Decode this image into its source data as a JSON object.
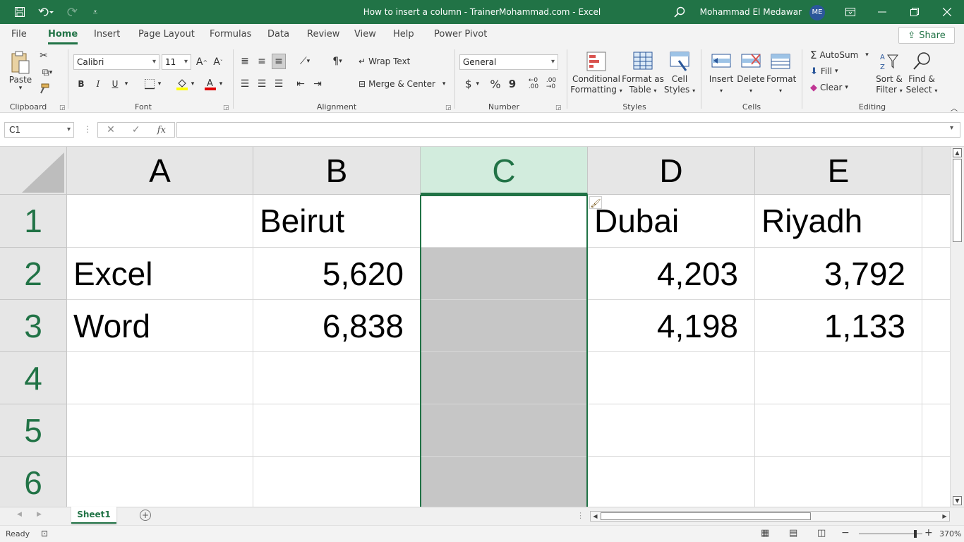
{
  "window": {
    "title": "How to insert a column - TrainerMohammad.com  -  Excel",
    "user_name": "Mohammad El Medawar",
    "user_initials": "ME"
  },
  "ribbon_tabs": [
    "File",
    "Home",
    "Insert",
    "Page Layout",
    "Formulas",
    "Data",
    "Review",
    "View",
    "Help",
    "Power Pivot"
  ],
  "active_tab": "Home",
  "share_label": "Share",
  "clipboard": {
    "paste": "Paste",
    "group": "Clipboard"
  },
  "font": {
    "name": "Calibri",
    "size": "11",
    "group": "Font",
    "bold": "B",
    "italic": "I",
    "underline": "U"
  },
  "alignment": {
    "wrap_text": "Wrap Text",
    "merge_center": "Merge & Center",
    "group": "Alignment"
  },
  "number": {
    "format": "General",
    "currency": "$",
    "percent": "%",
    "comma": "9",
    "group": "Number"
  },
  "styles": {
    "conditional": [
      "Conditional",
      "Formatting"
    ],
    "format_table": [
      "Format as",
      "Table"
    ],
    "cell_styles": [
      "Cell",
      "Styles"
    ],
    "group": "Styles"
  },
  "cells_group": {
    "insert": "Insert",
    "delete": "Delete",
    "format": "Format",
    "group": "Cells"
  },
  "editing": {
    "autosum": "AutoSum",
    "fill": "Fill",
    "clear": "Clear",
    "sort_filter": [
      "Sort &",
      "Filter"
    ],
    "find_select": [
      "Find &",
      "Select"
    ],
    "group": "Editing"
  },
  "formula_bar": {
    "name_box": "C1",
    "fx": "fx",
    "content": ""
  },
  "columns": [
    "A",
    "B",
    "C",
    "D",
    "E"
  ],
  "rows": [
    "1",
    "2",
    "3",
    "4",
    "5",
    "6"
  ],
  "cells": {
    "B1": "Beirut",
    "D1": "Dubai",
    "E1": "Riyadh",
    "A2": "Excel",
    "B2": "5,620",
    "D2": "4,203",
    "E2": "3,792",
    "A3": "Word",
    "B3": "6,838",
    "D3": "4,198",
    "E3": "1,133"
  },
  "sheet_tabs": [
    "Sheet1"
  ],
  "status": {
    "ready": "Ready",
    "zoom": "370%"
  },
  "colors": {
    "accent": "#217346",
    "selected_column": "#c6c6c6",
    "header_bg": "#e6e6e6"
  }
}
